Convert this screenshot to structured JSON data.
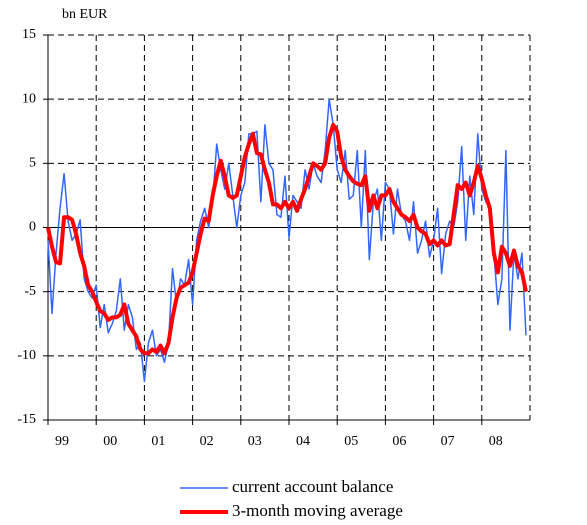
{
  "chart_data": {
    "type": "line",
    "y_label": "bn EUR",
    "categories": [
      "99",
      null,
      null,
      null,
      null,
      null,
      null,
      null,
      null,
      null,
      null,
      null,
      "00",
      null,
      null,
      null,
      null,
      null,
      null,
      null,
      null,
      null,
      null,
      null,
      "01",
      null,
      null,
      null,
      null,
      null,
      null,
      null,
      null,
      null,
      null,
      null,
      "02",
      null,
      null,
      null,
      null,
      null,
      null,
      null,
      null,
      null,
      null,
      null,
      "03",
      null,
      null,
      null,
      null,
      null,
      null,
      null,
      null,
      null,
      null,
      null,
      "04",
      null,
      null,
      null,
      null,
      null,
      null,
      null,
      null,
      null,
      null,
      null,
      "05",
      null,
      null,
      null,
      null,
      null,
      null,
      null,
      null,
      null,
      null,
      null,
      "06",
      null,
      null,
      null,
      null,
      null,
      null,
      null,
      null,
      null,
      null,
      null,
      "07",
      null,
      null,
      null,
      null,
      null,
      null,
      null,
      null,
      null,
      null,
      null,
      "08",
      null,
      null,
      null,
      null,
      null,
      null,
      null,
      null,
      null,
      null,
      null
    ],
    "series": [
      {
        "name": "current account balance",
        "color": "#3366ff",
        "width": 1.5,
        "values": [
          -1,
          -6.7,
          -2,
          1.5,
          4.2,
          0.5,
          -1,
          -0.5,
          0.6,
          -4,
          -5,
          -5.5,
          -4.5,
          -7.8,
          -6,
          -8.2,
          -7.5,
          -6.5,
          -4,
          -8,
          -6,
          -7,
          -9.5,
          -9,
          -12,
          -9,
          -8,
          -10,
          -9.5,
          -10.5,
          -9,
          -3.2,
          -6,
          -4,
          -4.5,
          -2.5,
          -6,
          -1,
          0.5,
          1.5,
          0,
          2,
          6.5,
          4.5,
          3,
          5,
          2.5,
          0,
          2.5,
          3.5,
          7.3,
          7.3,
          7.5,
          2,
          8,
          5,
          4.5,
          1,
          0.8,
          4,
          -0.8,
          2.5,
          2,
          1.5,
          4.5,
          3,
          5,
          4,
          3.5,
          6,
          10,
          8,
          4.5,
          3.5,
          6,
          2.2,
          2.5,
          6,
          0,
          6,
          -2.5,
          2,
          3,
          -1,
          3.5,
          3,
          -0.5,
          3,
          1,
          0.5,
          -1,
          2,
          -2,
          -1,
          0.5,
          -2.3,
          -1,
          1.5,
          -3.6,
          -0.5,
          0.5,
          0,
          2,
          6.3,
          -1,
          4,
          1,
          7.3,
          3,
          2,
          1.5,
          -2,
          -6,
          -4,
          6,
          -8,
          -2,
          -4,
          -2,
          -8.4
        ]
      },
      {
        "name": "3-month moving average",
        "color": "#ff0000",
        "width": 4,
        "values": [
          0,
          -1.5,
          -2.7,
          -2.8,
          0.8,
          0.8,
          0.6,
          -0.5,
          -2,
          -3,
          -4.5,
          -5,
          -5.8,
          -6.5,
          -6.7,
          -7.2,
          -7,
          -7,
          -6.8,
          -6,
          -7.5,
          -8,
          -8.5,
          -9.5,
          -9.8,
          -9.8,
          -9.5,
          -9.7,
          -9.2,
          -9.8,
          -9,
          -7,
          -5.5,
          -4.7,
          -4.5,
          -4.3,
          -3.5,
          -2,
          -0.5,
          0.7,
          0.5,
          2.5,
          4,
          5.2,
          4,
          2.5,
          2.3,
          2.5,
          4,
          5.5,
          6.5,
          7.3,
          5.8,
          5.7,
          4.5,
          3.5,
          1.8,
          1.8,
          1.5,
          2,
          1.5,
          2,
          1.3,
          2.2,
          3,
          4,
          5,
          4.8,
          4.5,
          5,
          7,
          8,
          7.5,
          5.5,
          4.5,
          4,
          3.6,
          3.4,
          3.3,
          4,
          1.3,
          2.5,
          1.5,
          2.5,
          2.5,
          3,
          2,
          1.5,
          1,
          0.8,
          0.5,
          1,
          0,
          -0.3,
          -0.5,
          -1.3,
          -1,
          -1.4,
          -1,
          -1.4,
          -1.3,
          1,
          3.3,
          3,
          3.5,
          2.5,
          3.5,
          4.8,
          3.8,
          2.5,
          1.5,
          -2,
          -3.5,
          -1.5,
          -2,
          -3,
          -1.8,
          -3,
          -3.5,
          -5
        ]
      }
    ],
    "ylim": [
      -15,
      15
    ],
    "yticks": [
      -15,
      -10,
      -5,
      0,
      5,
      10,
      15
    ],
    "grid": true
  }
}
